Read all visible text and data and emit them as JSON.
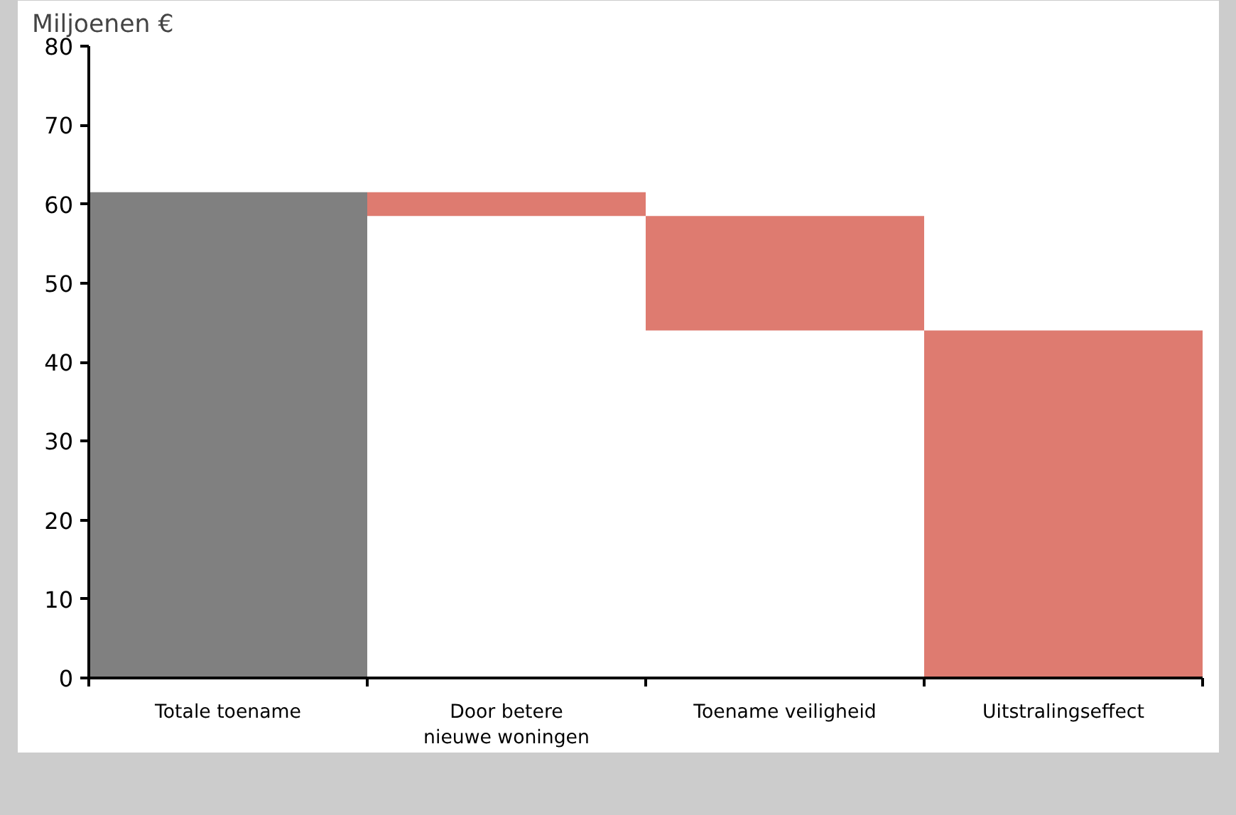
{
  "chart_data": {
    "type": "bar",
    "ylabel": "Miljoenen €",
    "categories": [
      "Totale toename",
      "Door betere nieuwe woningen",
      "Toename veiligheid",
      "Uitstralingseffect"
    ],
    "values": [
      61.5,
      3,
      14.5,
      44
    ],
    "base": [
      0,
      58.5,
      44,
      0
    ],
    "colors": [
      "#808080",
      "#de7b70",
      "#de7b70",
      "#de7b70"
    ],
    "ylim": [
      0,
      80
    ],
    "yticks": [
      0,
      10,
      20,
      30,
      40,
      50,
      60,
      70,
      80
    ],
    "grid": false
  }
}
